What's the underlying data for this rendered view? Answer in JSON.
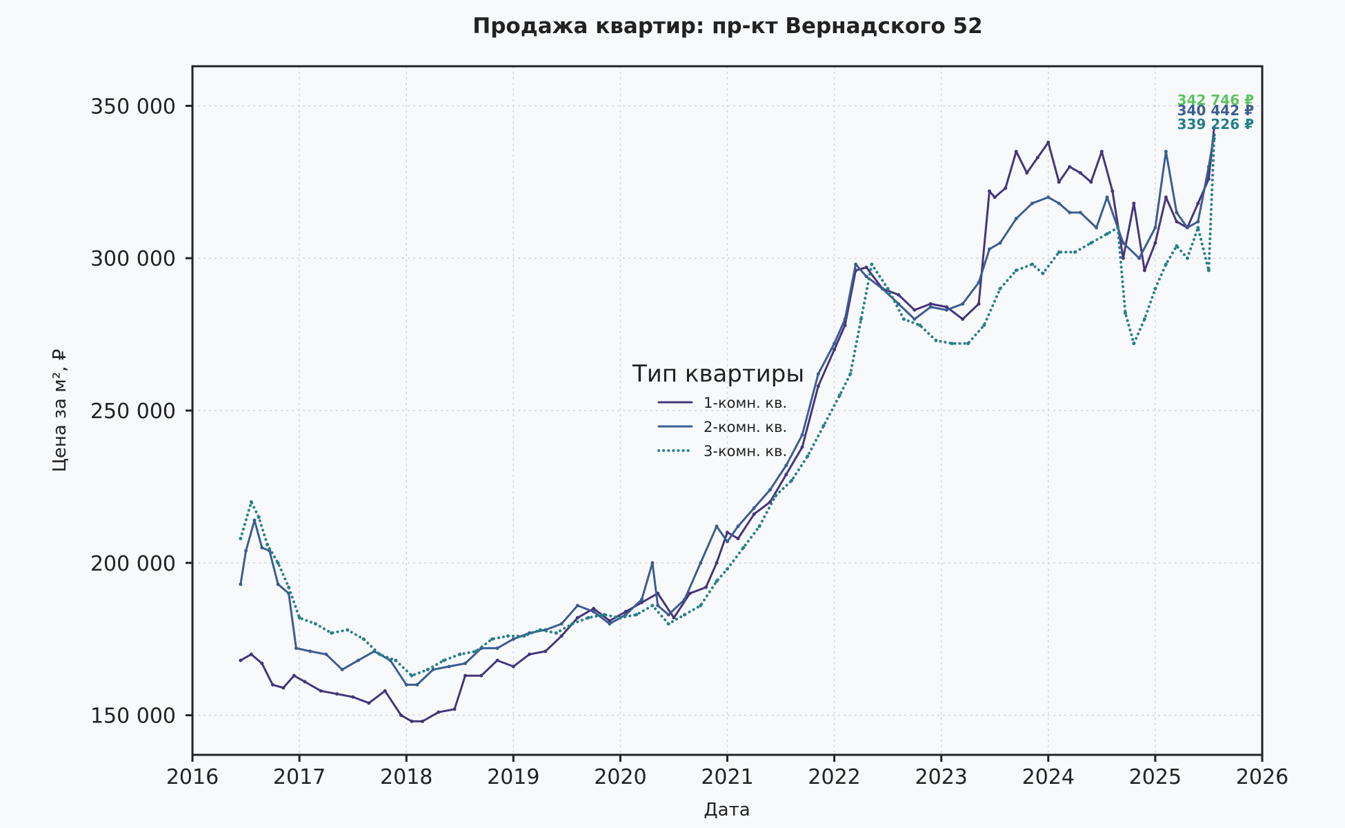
{
  "chart_data": {
    "type": "line",
    "title": "Продажа квартир: пр-кт Вернадского 52",
    "xlabel": "Дата",
    "ylabel": "Цена за м², ₽",
    "xlim": [
      2016,
      2026
    ],
    "ylim": [
      137000,
      363000
    ],
    "x_ticks": [
      2016,
      2017,
      2018,
      2019,
      2020,
      2021,
      2022,
      2023,
      2024,
      2025,
      2026
    ],
    "x_tick_labels": [
      "2016",
      "2017",
      "2018",
      "2019",
      "2020",
      "2021",
      "2022",
      "2023",
      "2024",
      "2025",
      "2026"
    ],
    "y_ticks": [
      150000,
      200000,
      250000,
      300000,
      350000
    ],
    "y_tick_labels": [
      "150 000",
      "200 000",
      "250 000",
      "300 000",
      "350 000"
    ],
    "grid": true,
    "legend": {
      "title": "Тип квартиры",
      "placement": "center"
    },
    "series": [
      {
        "name": "1-комн. кв.",
        "color": "#45357a",
        "style": "solid",
        "x": [
          2016.45,
          2016.55,
          2016.65,
          2016.75,
          2016.85,
          2016.95,
          2017.05,
          2017.2,
          2017.35,
          2017.5,
          2017.65,
          2017.8,
          2017.95,
          2018.05,
          2018.15,
          2018.3,
          2018.45,
          2018.55,
          2018.7,
          2018.85,
          2019.0,
          2019.15,
          2019.3,
          2019.45,
          2019.6,
          2019.75,
          2019.9,
          2020.05,
          2020.2,
          2020.35,
          2020.5,
          2020.65,
          2020.8,
          2020.9,
          2021.0,
          2021.1,
          2021.25,
          2021.4,
          2021.55,
          2021.7,
          2021.85,
          2022.0,
          2022.1,
          2022.2,
          2022.3,
          2022.45,
          2022.6,
          2022.75,
          2022.9,
          2023.05,
          2023.2,
          2023.35,
          2023.45,
          2023.5,
          2023.6,
          2023.7,
          2023.8,
          2023.9,
          2024.0,
          2024.1,
          2024.2,
          2024.3,
          2024.4,
          2024.5,
          2024.6,
          2024.7,
          2024.8,
          2024.9,
          2025.0,
          2025.1,
          2025.2,
          2025.3,
          2025.4,
          2025.5,
          2025.55
        ],
        "values": [
          168000,
          170000,
          167000,
          160000,
          159000,
          163000,
          161000,
          158000,
          157000,
          156000,
          154000,
          158000,
          150000,
          148000,
          148000,
          151000,
          152000,
          163000,
          163000,
          168000,
          166000,
          170000,
          171000,
          176000,
          182000,
          185000,
          181000,
          184000,
          187000,
          190000,
          182000,
          190000,
          192000,
          200000,
          210000,
          208000,
          216000,
          220000,
          229000,
          238000,
          258000,
          270000,
          278000,
          296000,
          297000,
          290000,
          288000,
          283000,
          285000,
          284000,
          280000,
          285000,
          322000,
          320000,
          323000,
          335000,
          328000,
          333000,
          338000,
          325000,
          330000,
          328000,
          325000,
          335000,
          322000,
          300000,
          318000,
          296000,
          305000,
          320000,
          312000,
          310000,
          318000,
          326000,
          342746
        ]
      },
      {
        "name": "2-комн. кв.",
        "color": "#3b5d8f",
        "style": "solid",
        "x": [
          2016.45,
          2016.5,
          2016.58,
          2016.65,
          2016.72,
          2016.8,
          2016.9,
          2016.97,
          2017.1,
          2017.25,
          2017.4,
          2017.55,
          2017.7,
          2017.85,
          2018.0,
          2018.1,
          2018.25,
          2018.4,
          2018.55,
          2018.7,
          2018.85,
          2019.0,
          2019.15,
          2019.3,
          2019.45,
          2019.6,
          2019.75,
          2019.9,
          2020.05,
          2020.2,
          2020.3,
          2020.35,
          2020.45,
          2020.6,
          2020.75,
          2020.9,
          2021.0,
          2021.1,
          2021.25,
          2021.4,
          2021.55,
          2021.7,
          2021.85,
          2022.0,
          2022.1,
          2022.2,
          2022.3,
          2022.45,
          2022.6,
          2022.75,
          2022.9,
          2023.05,
          2023.2,
          2023.35,
          2023.45,
          2023.55,
          2023.7,
          2023.85,
          2024.0,
          2024.1,
          2024.2,
          2024.3,
          2024.45,
          2024.55,
          2024.7,
          2024.85,
          2025.0,
          2025.1,
          2025.2,
          2025.3,
          2025.4,
          2025.5,
          2025.55
        ],
        "values": [
          193000,
          204000,
          214000,
          205000,
          204000,
          193000,
          190000,
          172000,
          171000,
          170000,
          165000,
          168000,
          171000,
          168000,
          160000,
          160000,
          165000,
          166000,
          167000,
          172000,
          172000,
          175000,
          177000,
          178000,
          180000,
          186000,
          184000,
          180000,
          183000,
          188000,
          200000,
          186000,
          183000,
          188000,
          200000,
          212000,
          207000,
          212000,
          218000,
          224000,
          232000,
          242000,
          262000,
          272000,
          280000,
          298000,
          294000,
          290000,
          285000,
          280000,
          284000,
          283000,
          285000,
          292000,
          303000,
          305000,
          313000,
          318000,
          320000,
          318000,
          315000,
          315000,
          310000,
          320000,
          305000,
          300000,
          310000,
          335000,
          315000,
          310000,
          312000,
          330000,
          340442
        ]
      },
      {
        "name": "3-комн. кв.",
        "color": "#25808a",
        "style": "dotted",
        "x": [
          2016.45,
          2016.55,
          2016.62,
          2016.7,
          2016.8,
          2016.9,
          2017.0,
          2017.15,
          2017.3,
          2017.45,
          2017.6,
          2017.75,
          2017.9,
          2018.05,
          2018.2,
          2018.35,
          2018.5,
          2018.65,
          2018.8,
          2018.95,
          2019.1,
          2019.25,
          2019.4,
          2019.55,
          2019.7,
          2019.85,
          2020.0,
          2020.15,
          2020.3,
          2020.45,
          2020.6,
          2020.75,
          2020.9,
          2021.0,
          2021.15,
          2021.3,
          2021.45,
          2021.6,
          2021.75,
          2021.9,
          2022.05,
          2022.15,
          2022.25,
          2022.35,
          2022.5,
          2022.65,
          2022.8,
          2022.95,
          2023.1,
          2023.25,
          2023.4,
          2023.55,
          2023.7,
          2023.85,
          2023.95,
          2024.1,
          2024.25,
          2024.4,
          2024.55,
          2024.65,
          2024.72,
          2024.8,
          2024.9,
          2025.0,
          2025.1,
          2025.2,
          2025.3,
          2025.4,
          2025.5,
          2025.55
        ],
        "values": [
          208000,
          220000,
          215000,
          206000,
          200000,
          192000,
          182000,
          180000,
          177000,
          178000,
          175000,
          170000,
          168000,
          163000,
          165000,
          168000,
          170000,
          171000,
          175000,
          176000,
          176000,
          178000,
          177000,
          180000,
          182000,
          183000,
          182000,
          183000,
          186000,
          180000,
          183000,
          186000,
          194000,
          198000,
          205000,
          212000,
          222000,
          227000,
          235000,
          245000,
          255000,
          262000,
          280000,
          298000,
          290000,
          280000,
          278000,
          273000,
          272000,
          272000,
          278000,
          290000,
          296000,
          298000,
          295000,
          302000,
          302000,
          305000,
          308000,
          310000,
          282000,
          272000,
          280000,
          290000,
          298000,
          304000,
          300000,
          310000,
          296000,
          339226
        ]
      }
    ],
    "end_labels": [
      {
        "text": "342 746 ₽",
        "color": "#5ec461"
      },
      {
        "text": "340 442 ₽",
        "color": "#3b5d8f"
      },
      {
        "text": "339 226 ₽",
        "color": "#25808a"
      }
    ]
  }
}
